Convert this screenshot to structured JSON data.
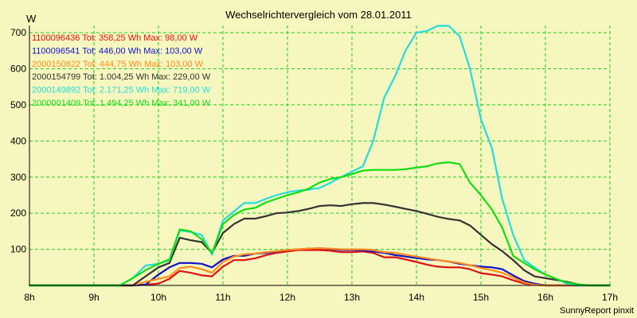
{
  "chart_data": {
    "type": "line",
    "title": "Wechselrichtervergleich vom 28.01.2011",
    "ylabel": "W",
    "xlabel": "",
    "footer": "SunnyReport pinxit",
    "xlim": [
      8,
      17
    ],
    "ylim": [
      0,
      720
    ],
    "x_ticks": [
      {
        "value": 8,
        "label": "8h"
      },
      {
        "value": 9,
        "label": "9h"
      },
      {
        "value": 10,
        "label": "10h"
      },
      {
        "value": 11,
        "label": "11h"
      },
      {
        "value": 12,
        "label": "12h"
      },
      {
        "value": 13,
        "label": "13h"
      },
      {
        "value": 14,
        "label": "14h"
      },
      {
        "value": 15,
        "label": "15h"
      },
      {
        "value": 16,
        "label": "16h"
      },
      {
        "value": 17,
        "label": "17h"
      }
    ],
    "y_ticks": [
      {
        "value": 100,
        "label": "100"
      },
      {
        "value": 200,
        "label": "200"
      },
      {
        "value": 300,
        "label": "300"
      },
      {
        "value": 400,
        "label": "400"
      },
      {
        "value": 500,
        "label": "500"
      },
      {
        "value": 600,
        "label": "600"
      },
      {
        "value": 700,
        "label": "700"
      }
    ],
    "grid": true,
    "background": "#f6f6bf",
    "grid_color": "#22cc22",
    "x": [
      8.0,
      9.0,
      9.4,
      9.6,
      9.8,
      10.0,
      10.17,
      10.33,
      10.5,
      10.67,
      10.83,
      11.0,
      11.17,
      11.33,
      11.5,
      11.67,
      11.83,
      12.0,
      12.17,
      12.33,
      12.5,
      12.67,
      12.83,
      13.0,
      13.17,
      13.33,
      13.5,
      13.67,
      13.83,
      14.0,
      14.17,
      14.33,
      14.5,
      14.67,
      14.83,
      15.0,
      15.17,
      15.33,
      15.5,
      15.67,
      15.83,
      16.0,
      16.17,
      16.33,
      16.5,
      16.67,
      16.83,
      17.0
    ],
    "series": [
      {
        "name": "1100096436",
        "legend": "1100096436 Tot: 358,25 Wh Max: 98,00 W",
        "color": "#dd1111",
        "values": [
          0,
          0,
          0,
          0,
          2,
          5,
          18,
          40,
          35,
          28,
          25,
          52,
          70,
          70,
          75,
          84,
          90,
          94,
          98,
          98,
          98,
          96,
          92,
          92,
          94,
          90,
          78,
          78,
          72,
          65,
          57,
          52,
          50,
          50,
          45,
          34,
          30,
          25,
          14,
          5,
          2,
          0,
          0,
          0,
          0,
          0,
          0,
          0
        ]
      },
      {
        "name": "1100096541",
        "legend": "1100096541 Tot: 446,00 Wh Max: 103,00 W",
        "color": "#1111cc",
        "values": [
          0,
          0,
          0,
          0,
          2,
          30,
          50,
          62,
          62,
          60,
          50,
          72,
          82,
          82,
          88,
          90,
          94,
          98,
          100,
          102,
          103,
          101,
          98,
          98,
          97,
          94,
          90,
          84,
          80,
          76,
          72,
          70,
          66,
          60,
          56,
          52,
          50,
          45,
          28,
          12,
          5,
          0,
          0,
          0,
          0,
          0,
          0,
          0
        ]
      },
      {
        "name": "2000150622",
        "legend": "2000150622 Tot: 444,75 Wh Max: 103,00 W",
        "color": "#ff8c1a",
        "values": [
          0,
          0,
          0,
          0,
          10,
          18,
          25,
          48,
          52,
          45,
          35,
          65,
          80,
          86,
          88,
          92,
          95,
          98,
          100,
          102,
          103,
          102,
          100,
          100,
          100,
          98,
          92,
          90,
          85,
          80,
          75,
          70,
          66,
          62,
          56,
          48,
          42,
          35,
          22,
          8,
          2,
          0,
          0,
          0,
          0,
          0,
          0,
          0
        ]
      },
      {
        "name": "2000154799",
        "legend": "2000154799 Tot: 1.004,25 Wh Max: 229,00 W",
        "color": "#333333",
        "values": [
          0,
          0,
          0,
          0,
          25,
          50,
          62,
          132,
          125,
          120,
          90,
          145,
          170,
          185,
          185,
          192,
          200,
          202,
          206,
          212,
          220,
          222,
          220,
          225,
          228,
          228,
          224,
          218,
          212,
          206,
          198,
          190,
          184,
          180,
          166,
          140,
          114,
          95,
          70,
          42,
          25,
          20,
          15,
          10,
          3,
          0,
          0,
          0
        ]
      },
      {
        "name": "2000149892",
        "legend": "2000149892 Tot: 2.171,25 Wh Max: 719,00 W",
        "color": "#22dddd",
        "values": [
          0,
          0,
          0,
          20,
          55,
          60,
          70,
          152,
          148,
          140,
          85,
          180,
          205,
          228,
          228,
          240,
          250,
          258,
          263,
          265,
          270,
          285,
          300,
          315,
          330,
          400,
          520,
          580,
          650,
          700,
          705,
          719,
          719,
          690,
          600,
          460,
          380,
          240,
          140,
          70,
          50,
          30,
          18,
          5,
          0,
          0,
          0,
          0
        ]
      },
      {
        "name": "2000001409",
        "legend": "2000001409 Tot: 1.494,25 Wh Max: 341,00 W",
        "color": "#11dd11",
        "values": [
          0,
          0,
          0,
          20,
          42,
          60,
          72,
          155,
          150,
          128,
          90,
          170,
          195,
          210,
          215,
          230,
          240,
          250,
          258,
          268,
          285,
          295,
          300,
          308,
          318,
          320,
          320,
          320,
          322,
          326,
          330,
          338,
          341,
          336,
          285,
          250,
          210,
          160,
          82,
          62,
          45,
          30,
          18,
          8,
          3,
          0,
          0,
          0
        ]
      }
    ]
  }
}
